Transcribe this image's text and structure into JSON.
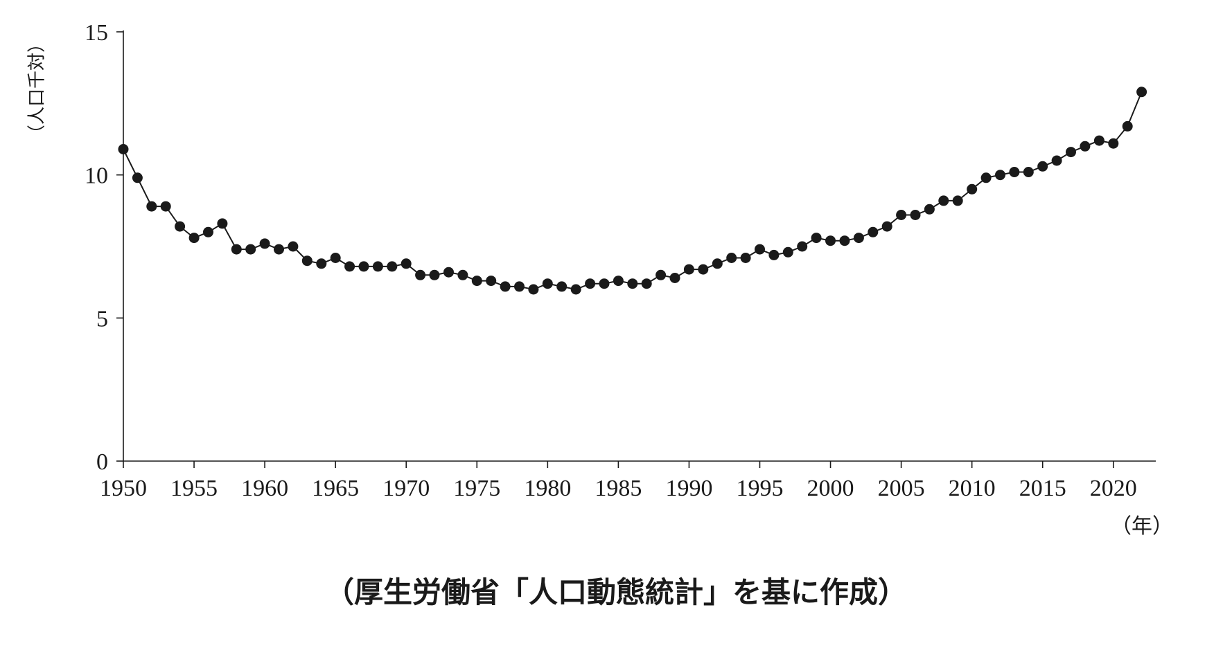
{
  "chart_data": {
    "type": "line",
    "ylabel": "（人口千対）",
    "xunit": "（年）",
    "ylim": [
      0,
      15
    ],
    "xlim": [
      1950,
      2023
    ],
    "yticks": [
      0,
      5,
      10,
      15
    ],
    "xticks": [
      1950,
      1955,
      1960,
      1965,
      1970,
      1975,
      1980,
      1985,
      1990,
      1995,
      2000,
      2005,
      2010,
      2015,
      2020
    ],
    "grid": false,
    "marker": "filled-circle",
    "line_color": "#1a1a1a",
    "x": [
      1950,
      1951,
      1952,
      1953,
      1954,
      1955,
      1956,
      1957,
      1958,
      1959,
      1960,
      1961,
      1962,
      1963,
      1964,
      1965,
      1966,
      1967,
      1968,
      1969,
      1970,
      1971,
      1972,
      1973,
      1974,
      1975,
      1976,
      1977,
      1978,
      1979,
      1980,
      1981,
      1982,
      1983,
      1984,
      1985,
      1986,
      1987,
      1988,
      1989,
      1990,
      1991,
      1992,
      1993,
      1994,
      1995,
      1996,
      1997,
      1998,
      1999,
      2000,
      2001,
      2002,
      2003,
      2004,
      2005,
      2006,
      2007,
      2008,
      2009,
      2010,
      2011,
      2012,
      2013,
      2014,
      2015,
      2016,
      2017,
      2018,
      2019,
      2020,
      2021,
      2022
    ],
    "series": [
      {
        "values": [
          10.9,
          9.9,
          8.9,
          8.9,
          8.2,
          7.8,
          8.0,
          8.3,
          7.4,
          7.4,
          7.6,
          7.4,
          7.5,
          7.0,
          6.9,
          7.1,
          6.8,
          6.8,
          6.8,
          6.8,
          6.9,
          6.5,
          6.5,
          6.6,
          6.5,
          6.3,
          6.3,
          6.1,
          6.1,
          6.0,
          6.2,
          6.1,
          6.0,
          6.2,
          6.2,
          6.3,
          6.2,
          6.2,
          6.5,
          6.4,
          6.7,
          6.7,
          6.9,
          7.1,
          7.1,
          7.4,
          7.2,
          7.3,
          7.5,
          7.8,
          7.7,
          7.7,
          7.8,
          8.0,
          8.2,
          8.6,
          8.6,
          8.8,
          9.1,
          9.1,
          9.5,
          9.9,
          10.0,
          10.1,
          10.1,
          10.3,
          10.5,
          10.8,
          11.0,
          11.2,
          11.1,
          11.7,
          12.9
        ]
      }
    ]
  },
  "source_note": "（厚生労働省「人口動態統計」を基に作成）"
}
